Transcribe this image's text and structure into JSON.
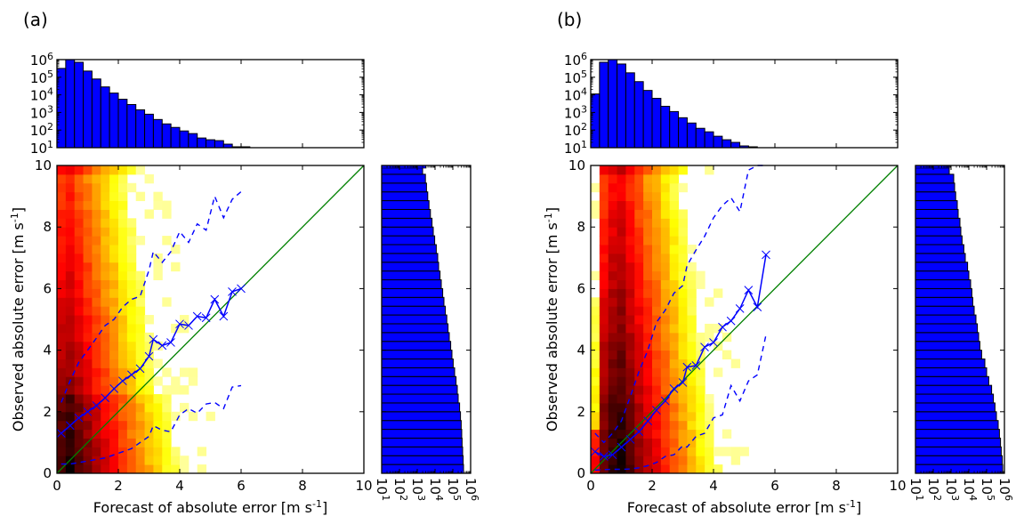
{
  "chart_data": [
    {
      "type": "heatmap",
      "panel_label": "(a)",
      "xlabel": "Forecast of absolute error [m s",
      "ylabel": "Observed absolute error [m s",
      "unit_superscript": "-1",
      "unit_close": "]",
      "xlim": [
        0,
        10
      ],
      "ylim": [
        0,
        10
      ],
      "xticks": [
        "0",
        "2",
        "4",
        "6",
        "8",
        "10"
      ],
      "yticks": [
        "0",
        "2",
        "4",
        "6",
        "8",
        "10"
      ],
      "bins": 35,
      "colormap": "hot_r (log counts)",
      "one_to_one_line": {
        "color": "#008000"
      },
      "median_line": {
        "color": "#0000ff",
        "marker": "x",
        "x": [
          0.14,
          0.43,
          0.71,
          1.0,
          1.29,
          1.57,
          1.86,
          2.14,
          2.43,
          2.71,
          3.0,
          3.14,
          3.43,
          3.71,
          4.0,
          4.29,
          4.57,
          4.86,
          5.14,
          5.43,
          5.71,
          6.0
        ],
        "y": [
          1.3,
          1.55,
          1.8,
          2.0,
          2.2,
          2.45,
          2.75,
          3.0,
          3.2,
          3.4,
          3.8,
          4.35,
          4.15,
          4.25,
          4.85,
          4.8,
          5.1,
          5.05,
          5.65,
          5.1,
          5.9,
          6.0
        ]
      },
      "upper_quantile_line": {
        "color": "#0000ff",
        "style": "dashed",
        "x": [
          0.14,
          0.43,
          0.71,
          1.0,
          1.29,
          1.57,
          1.86,
          2.14,
          2.43,
          2.71,
          3.0,
          3.14,
          3.43,
          3.71,
          4.0,
          4.29,
          4.57,
          4.86,
          5.14,
          5.43,
          5.71,
          6.0
        ],
        "y": [
          2.3,
          3.0,
          3.6,
          4.0,
          4.4,
          4.8,
          5.0,
          5.4,
          5.65,
          5.75,
          6.6,
          7.2,
          6.85,
          7.2,
          7.85,
          7.5,
          8.1,
          7.9,
          9.0,
          8.3,
          8.9,
          9.15
        ]
      },
      "lower_quantile_line": {
        "color": "#0000ff",
        "style": "dashed",
        "x": [
          0.14,
          0.43,
          0.71,
          1.0,
          1.29,
          1.57,
          1.86,
          2.14,
          2.43,
          2.71,
          3.0,
          3.14,
          3.43,
          3.71,
          4.0,
          4.29,
          4.57,
          4.86,
          5.14,
          5.43,
          5.71,
          6.0
        ],
        "y": [
          0.3,
          0.3,
          0.35,
          0.4,
          0.45,
          0.5,
          0.6,
          0.7,
          0.8,
          1.0,
          1.2,
          1.55,
          1.4,
          1.35,
          1.9,
          2.1,
          1.95,
          2.25,
          2.3,
          2.1,
          2.8,
          2.85
        ]
      },
      "top_histogram": {
        "type": "bar",
        "yscale": "log",
        "yticks": [
          "10^1",
          "10^2",
          "10^3",
          "10^4",
          "10^5",
          "10^6"
        ],
        "bin_width": 0.2857,
        "log10_counts": [
          5.5,
          6.0,
          5.85,
          5.35,
          4.9,
          4.45,
          4.1,
          3.75,
          3.45,
          3.15,
          2.9,
          2.6,
          2.35,
          2.15,
          1.95,
          1.8,
          1.55,
          1.45,
          1.4,
          1.2,
          1.05,
          1.05
        ]
      },
      "right_histogram": {
        "type": "barh",
        "xscale": "log",
        "xticks": [
          "10^1",
          "10^2",
          "10^3",
          "10^4",
          "10^5",
          "10^6"
        ],
        "bin_width": 0.2857,
        "log10_counts": [
          5.6,
          5.58,
          5.55,
          5.52,
          5.5,
          5.47,
          5.43,
          5.38,
          5.3,
          5.25,
          5.18,
          5.1,
          5.02,
          4.95,
          4.88,
          4.8,
          4.73,
          4.66,
          4.58,
          4.5,
          4.43,
          4.35,
          4.28,
          4.2,
          4.15,
          4.07,
          3.98,
          3.9,
          3.83,
          3.74,
          3.66,
          3.59,
          3.52,
          3.46,
          3.3
        ]
      }
    },
    {
      "type": "heatmap",
      "panel_label": "(b)",
      "xlabel": "Forecast of absolute error [m s",
      "ylabel": "Observed absolute error [m s",
      "unit_superscript": "-1",
      "unit_close": "]",
      "xlim": [
        0,
        10
      ],
      "ylim": [
        0,
        10
      ],
      "xticks": [
        "0",
        "2",
        "4",
        "6",
        "8",
        "10"
      ],
      "yticks": [
        "0",
        "2",
        "4",
        "6",
        "8",
        "10"
      ],
      "bins": 35,
      "colormap": "hot_r (log counts)",
      "one_to_one_line": {
        "color": "#008000"
      },
      "median_line": {
        "color": "#0000ff",
        "marker": "x",
        "x": [
          0.14,
          0.43,
          0.71,
          1.0,
          1.29,
          1.57,
          1.86,
          2.14,
          2.43,
          2.71,
          3.0,
          3.14,
          3.43,
          3.71,
          4.0,
          4.29,
          4.57,
          4.86,
          5.14,
          5.43,
          5.71
        ],
        "y": [
          0.7,
          0.55,
          0.6,
          0.85,
          1.1,
          1.35,
          1.7,
          2.05,
          2.35,
          2.75,
          2.95,
          3.45,
          3.5,
          4.1,
          4.25,
          4.75,
          4.95,
          5.35,
          5.95,
          5.4,
          7.1
        ]
      },
      "upper_quantile_line": {
        "color": "#0000ff",
        "style": "dashed",
        "x": [
          0.14,
          0.43,
          0.71,
          1.0,
          1.29,
          1.57,
          1.86,
          2.14,
          2.43,
          2.71,
          3.0,
          3.14,
          3.43,
          3.71,
          4.0,
          4.29,
          4.57,
          4.86,
          5.14,
          5.43,
          5.71
        ],
        "y": [
          1.3,
          1.0,
          1.3,
          1.7,
          2.5,
          3.3,
          4.0,
          4.9,
          5.3,
          5.85,
          6.1,
          6.75,
          7.25,
          7.7,
          8.3,
          8.7,
          8.95,
          8.5,
          9.85,
          10.0,
          10.0
        ]
      },
      "lower_quantile_line": {
        "color": "#0000ff",
        "style": "dashed",
        "x": [
          0.14,
          0.43,
          0.71,
          1.0,
          1.29,
          1.57,
          1.86,
          2.14,
          2.43,
          2.71,
          3.0,
          3.14,
          3.43,
          3.71,
          4.0,
          4.29,
          4.57,
          4.86,
          5.14,
          5.43,
          5.71
        ],
        "y": [
          0.1,
          0.12,
          0.13,
          0.13,
          0.14,
          0.18,
          0.25,
          0.35,
          0.55,
          0.6,
          0.9,
          0.85,
          1.2,
          1.3,
          1.8,
          1.9,
          2.85,
          2.35,
          3.0,
          3.2,
          4.5
        ]
      },
      "top_histogram": {
        "type": "bar",
        "yscale": "log",
        "yticks": [
          "10^1",
          "10^2",
          "10^3",
          "10^4",
          "10^5",
          "10^6"
        ],
        "bin_width": 0.2857,
        "log10_counts": [
          4.05,
          5.85,
          6.0,
          5.75,
          5.25,
          4.75,
          4.25,
          3.8,
          3.35,
          3.05,
          2.7,
          2.4,
          2.1,
          1.9,
          1.65,
          1.45,
          1.3,
          1.1,
          1.05
        ]
      },
      "right_histogram": {
        "type": "barh",
        "xscale": "log",
        "xticks": [
          "10^1",
          "10^2",
          "10^3",
          "10^4",
          "10^5",
          "10^6"
        ],
        "bin_width": 0.2857,
        "log10_counts": [
          5.9,
          5.88,
          5.82,
          5.78,
          5.72,
          5.65,
          5.55,
          5.47,
          5.38,
          5.28,
          5.12,
          5.0,
          4.9,
          4.72,
          4.62,
          4.55,
          4.48,
          4.4,
          4.3,
          4.22,
          4.17,
          4.1,
          4.0,
          3.93,
          3.8,
          3.72,
          3.62,
          3.55,
          3.5,
          3.4,
          3.35,
          3.26,
          3.2,
          3.15,
          2.9
        ]
      }
    }
  ]
}
